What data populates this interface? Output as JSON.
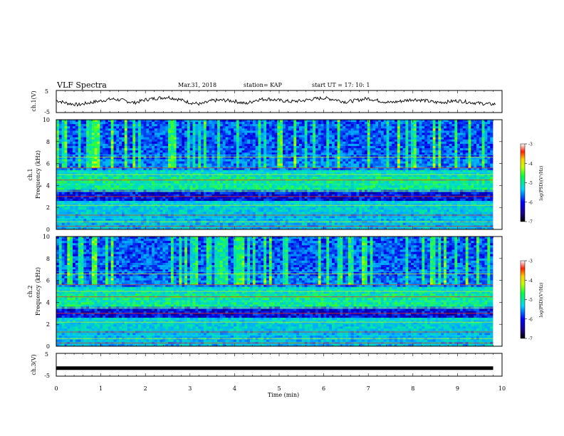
{
  "header": {
    "title": "VLF Spectra",
    "date": "Mar.31, 2018",
    "station": "station= KAP",
    "start_time": "start  UT =   17: 10: 1"
  },
  "chart_data": [
    {
      "type": "line",
      "panel": "ch1-waveform",
      "ylabel": "ch.1(V)",
      "yticks": [
        "5",
        "-5"
      ],
      "ylim": [
        -5,
        5
      ],
      "xlim": [
        0,
        10
      ],
      "series": [
        {
          "x": [
            0,
            0.25,
            0.5,
            0.75,
            1,
            1.25,
            1.5,
            1.75,
            2,
            2.25,
            2.5,
            2.75,
            3,
            3.25,
            3.5,
            3.75,
            4,
            4.25,
            4.5,
            4.75,
            5,
            5.25,
            5.5,
            5.75,
            6,
            6.25,
            6.5,
            6.75,
            7,
            7.25,
            7.5,
            7.75,
            8,
            8.25,
            8.5,
            8.75,
            9,
            9.25,
            9.5,
            9.75
          ],
          "values": [
            0.5,
            -0.8,
            -1.5,
            -0.5,
            0.3,
            1.2,
            0.5,
            -0.6,
            0.8,
            1.5,
            2.0,
            1.0,
            -0.5,
            -1.2,
            0.4,
            0.6,
            0.2,
            -1.0,
            0.8,
            1.2,
            0.5,
            0,
            0.3,
            1.1,
            1.6,
            0.9,
            -0.2,
            0.6,
            1.4,
            0.3,
            -0.5,
            0.2,
            1.0,
            0.5,
            -0.4,
            -0.2,
            0.4,
            -0.3,
            -0.8,
            -1.2
          ]
        }
      ]
    },
    {
      "type": "heatmap",
      "panel": "ch1-spectrogram",
      "ylabel_channel": "ch.1",
      "ylabel": "Frequency  (kHz)",
      "yticks": [
        "0",
        "2",
        "4",
        "6",
        "8",
        "10"
      ],
      "ylim": [
        0,
        10
      ],
      "xlim": [
        0,
        10
      ],
      "colorbar": {
        "label": "log(PSD)(V²/Hz)",
        "ticks": [
          "-3",
          "-4",
          "-5",
          "-6",
          "-7"
        ],
        "range": [
          -7,
          -3
        ]
      }
    },
    {
      "type": "heatmap",
      "panel": "ch2-spectrogram",
      "ylabel_channel": "ch.2",
      "ylabel": "Frequency  (kHz)",
      "yticks": [
        "0",
        "2",
        "4",
        "6",
        "8",
        "10"
      ],
      "ylim": [
        0,
        10
      ],
      "xlim": [
        0,
        10
      ],
      "colorbar": {
        "label": "log(PSD)(V²/Hz)",
        "ticks": [
          "-3",
          "-4",
          "-5",
          "-6",
          "-7"
        ],
        "range": [
          -7,
          -3
        ]
      }
    },
    {
      "type": "line",
      "panel": "ch3-waveform",
      "ylabel": "ch.3(V)",
      "yticks": [
        "5",
        "-5"
      ],
      "ylim": [
        -5,
        5
      ],
      "xlim": [
        0,
        10
      ],
      "series": [
        {
          "x": [
            0,
            9.8
          ],
          "values": [
            -1.5,
            -1.5
          ]
        }
      ]
    }
  ],
  "xaxis": {
    "label": "Time  (min)",
    "ticks": [
      "0",
      "1",
      "2",
      "3",
      "4",
      "5",
      "6",
      "7",
      "8",
      "9",
      "10"
    ]
  }
}
